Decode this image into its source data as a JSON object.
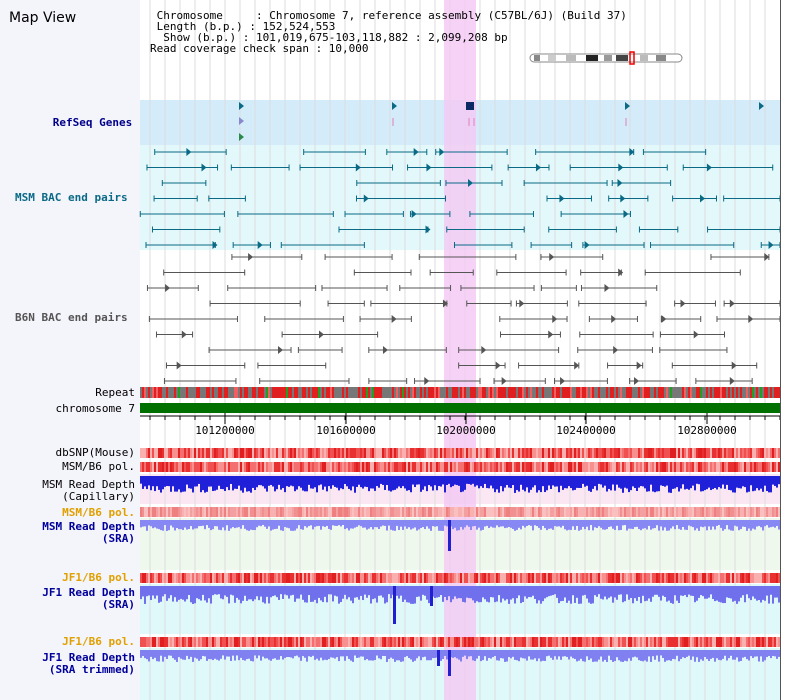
{
  "title": "Map View",
  "info": {
    "line1": " Chromosome     : Chromosome 7, reference assembly (C57BL/6J) (Build 37)",
    "line2": " Length (b.p.) : 152,524,553",
    "line3": "  Show (b.p.) : 101,019,675-103,118,882 : 2,099,208 bp",
    "line4": "Read coverage check span : 10,000"
  },
  "tracks": {
    "refseq": "RefSeq Genes",
    "msm_bac": "MSM BAC end pairs",
    "b6n_bac": "B6N BAC end pairs",
    "repeat": "Repeat",
    "chromosome": "chromosome 7",
    "dbsnp": "dbSNP(Mouse)",
    "msm_b6_pol_1": "MSM/B6 pol.",
    "msm_depth_cap_1": "MSM Read Depth",
    "msm_depth_cap_2": "(Capillary)",
    "msm_b6_pol_2": "MSM/B6 pol.",
    "msm_depth_sra_1": "MSM Read Depth",
    "msm_depth_sra_2": "(SRA)",
    "jf1_b6_pol_1": "JF1/B6 pol.",
    "jf1_depth_sra_1": "JF1 Read Depth",
    "jf1_depth_sra_2": "(SRA)",
    "jf1_b6_pol_2": "JF1/B6 pol.",
    "jf1_depth_trim_1": "JF1 Read Depth",
    "jf1_depth_trim_2": "(SRA trimmed)"
  },
  "axis": {
    "ticks": [
      "101200000",
      "101600000",
      "102000000",
      "102400000",
      "102800000"
    ]
  },
  "colors": {
    "refseq_label": "#00008b",
    "msm_label": "#0a6a86",
    "b6n_label": "#555555",
    "orange_label": "#e0a000",
    "blue_label": "#00009a",
    "highlight": "#f4c8f4",
    "chromosome_bar": "#007000"
  }
}
